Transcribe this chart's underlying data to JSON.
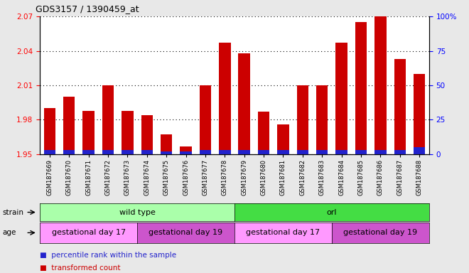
{
  "title": "GDS3157 / 1390459_at",
  "samples": [
    "GSM187669",
    "GSM187670",
    "GSM187671",
    "GSM187672",
    "GSM187673",
    "GSM187674",
    "GSM187675",
    "GSM187676",
    "GSM187677",
    "GSM187678",
    "GSM187679",
    "GSM187680",
    "GSM187681",
    "GSM187682",
    "GSM187683",
    "GSM187684",
    "GSM187685",
    "GSM187686",
    "GSM187687",
    "GSM187688"
  ],
  "transformed_count": [
    1.99,
    2.0,
    1.988,
    2.01,
    1.988,
    1.984,
    1.967,
    1.957,
    2.01,
    2.047,
    2.038,
    1.987,
    1.976,
    2.01,
    2.01,
    2.047,
    2.065,
    2.072,
    2.033,
    2.02
  ],
  "percentile_rank": [
    3,
    3,
    3,
    3,
    3,
    3,
    2,
    2,
    3,
    3,
    3,
    3,
    3,
    3,
    3,
    3,
    3,
    3,
    3,
    5
  ],
  "ylim_left": [
    1.95,
    2.07
  ],
  "ylim_right": [
    0,
    100
  ],
  "yticks_left": [
    1.95,
    1.98,
    2.01,
    2.04,
    2.07
  ],
  "yticks_right": [
    0,
    25,
    50,
    75,
    100
  ],
  "ytick_labels_left": [
    "1.95",
    "1.98",
    "2.01",
    "2.04",
    "2.07"
  ],
  "ytick_labels_right": [
    "0",
    "25",
    "50",
    "75",
    "100%"
  ],
  "bar_color_red": "#cc0000",
  "bar_color_blue": "#2222cc",
  "bar_width": 0.6,
  "strain_groups": [
    {
      "label": "wild type",
      "start": 0,
      "end": 10,
      "color": "#aaffaa"
    },
    {
      "label": "orl",
      "start": 10,
      "end": 20,
      "color": "#44dd44"
    }
  ],
  "age_groups": [
    {
      "label": "gestational day 17",
      "start": 0,
      "end": 5,
      "color": "#ff99ff"
    },
    {
      "label": "gestational day 19",
      "start": 5,
      "end": 10,
      "color": "#cc55cc"
    },
    {
      "label": "gestational day 17",
      "start": 10,
      "end": 15,
      "color": "#ff99ff"
    },
    {
      "label": "gestational day 19",
      "start": 15,
      "end": 20,
      "color": "#cc55cc"
    }
  ],
  "legend_items": [
    {
      "label": "transformed count",
      "color": "#cc0000"
    },
    {
      "label": "percentile rank within the sample",
      "color": "#2222cc"
    }
  ],
  "background_color": "#e8e8e8",
  "plot_bg_color": "#ffffff"
}
